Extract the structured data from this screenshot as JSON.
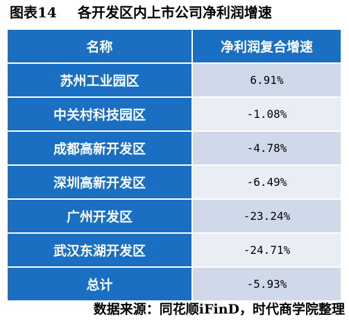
{
  "caption": {
    "label": "图表14",
    "title": "各开发区内上市公司净利润增速"
  },
  "table": {
    "headers": [
      "名称",
      "净利润复合增速"
    ],
    "rows": [
      {
        "name": "苏州工业园区",
        "value": "6.91%"
      },
      {
        "name": "中关村科技园区",
        "value": "-1.08%"
      },
      {
        "name": "成都高新开发区",
        "value": "-4.78%"
      },
      {
        "name": "深圳高新开发区",
        "value": "-6.49%"
      },
      {
        "name": "广州开发区",
        "value": "-23.24%"
      },
      {
        "name": "武汉东湖开发区",
        "value": "-24.71%"
      },
      {
        "name": "总计",
        "value": "-5.93%"
      }
    ]
  },
  "source": "数据来源：同花顺iFinD，时代商学院整理",
  "colors": {
    "header_blue": "#1b6fc2",
    "row_light_a": "#cfd9ea",
    "row_light_b": "#e9edf4"
  }
}
